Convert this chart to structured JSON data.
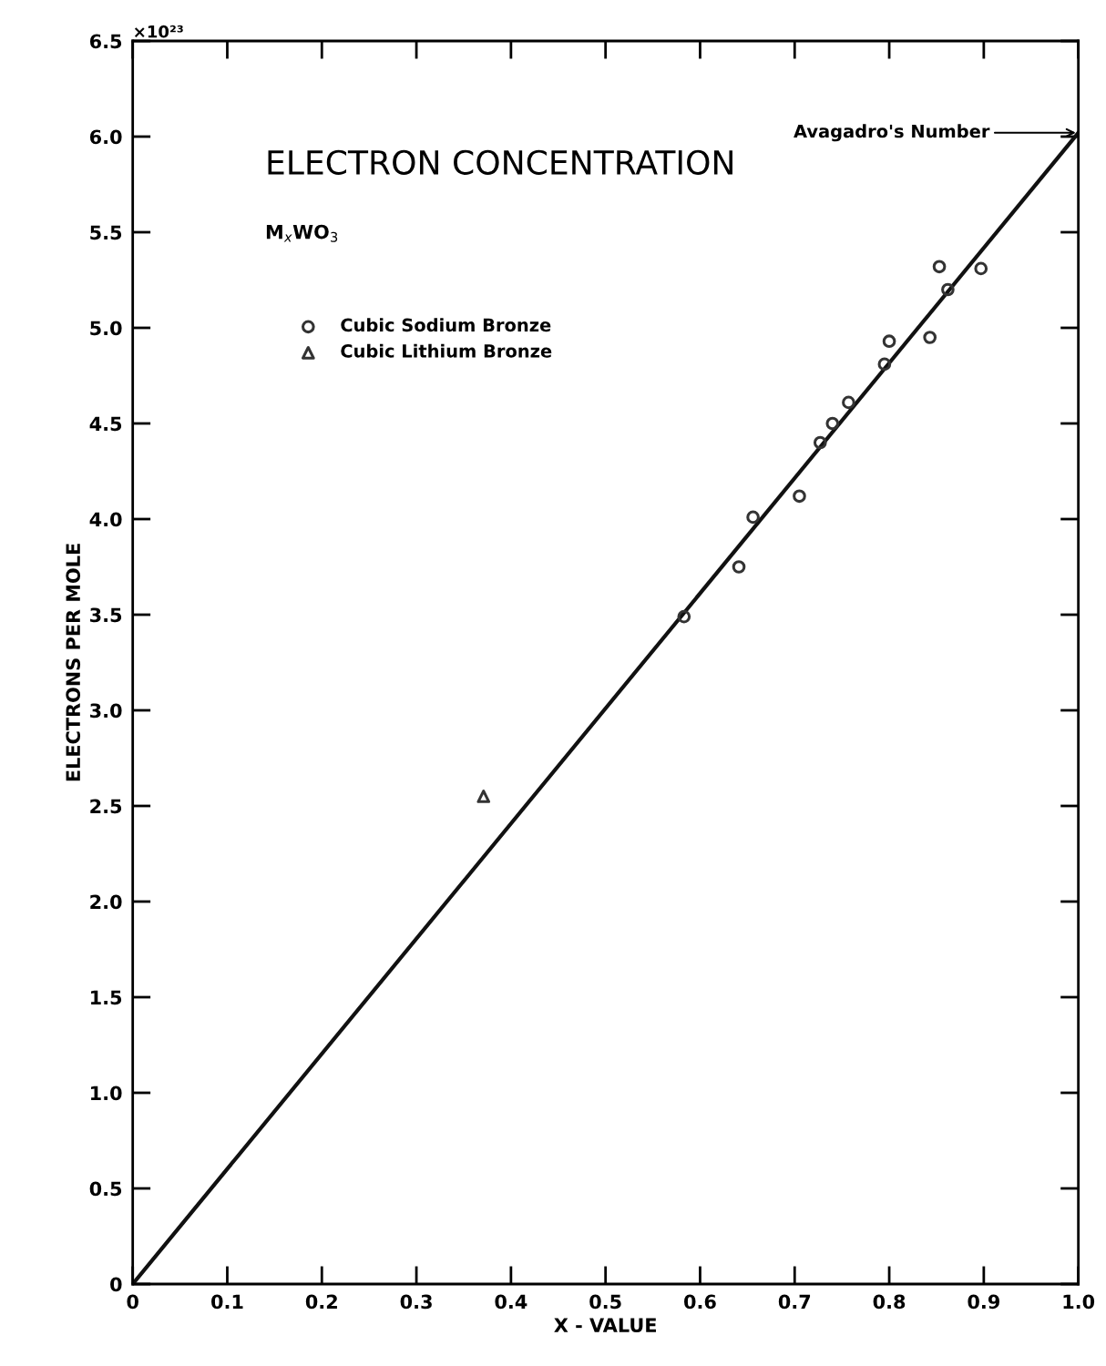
{
  "chart_data": {
    "type": "scatter",
    "title": "ELECTRON CONCENTRATION",
    "subtitle": "M$_{x}$WO$_{3}$",
    "xlabel": "X - VALUE",
    "ylabel": "ELECTRONS PER MOLE",
    "series": [
      {
        "name": "Cubic Sodium Bronze",
        "marker": "circle",
        "color": "#333333",
        "x": [
          0.583,
          0.641,
          0.656,
          0.705,
          0.727,
          0.74,
          0.757,
          0.795,
          0.8,
          0.843,
          0.853,
          0.862,
          0.897
        ],
        "values": [
          3.49,
          3.75,
          4.01,
          4.12,
          4.4,
          4.5,
          4.61,
          4.81,
          4.93,
          4.95,
          5.32,
          5.2,
          5.31
        ]
      },
      {
        "name": "Cubic Lithium Bronze",
        "marker": "triangle",
        "color": "#333333",
        "x": [
          0.371
        ],
        "values": [
          2.55
        ]
      },
      {
        "type": "line",
        "marker": "none",
        "color": "#111111",
        "x": [
          0,
          1.0
        ],
        "values": [
          0,
          6.02
        ]
      }
    ],
    "annotations": [
      {
        "text": "Avagadro's Number",
        "x": 1.0,
        "y": 6.02
      },
      "×10²³"
    ],
    "xlim": [
      0,
      1.0
    ],
    "ylim": [
      0,
      6.5
    ],
    "xticks": [
      0,
      0.1,
      0.2,
      0.3,
      0.4,
      0.5,
      0.6,
      0.7,
      0.8,
      0.9,
      {
        "value": 1.0,
        "label": "1.0"
      }
    ],
    "yticks": [
      0,
      0.5,
      {
        "value": 1.0,
        "label": "1.0"
      },
      1.5,
      {
        "value": 2.0,
        "label": "2.0"
      },
      2.5,
      {
        "value": 3.0,
        "label": "3.0"
      },
      3.5,
      {
        "value": 4.0,
        "label": "4.0"
      },
      4.5,
      {
        "value": 5.0,
        "label": "5.0"
      },
      5.5,
      {
        "value": 6.0,
        "label": "6.0"
      },
      6.5
    ],
    "grid": false,
    "legend": "top left"
  }
}
